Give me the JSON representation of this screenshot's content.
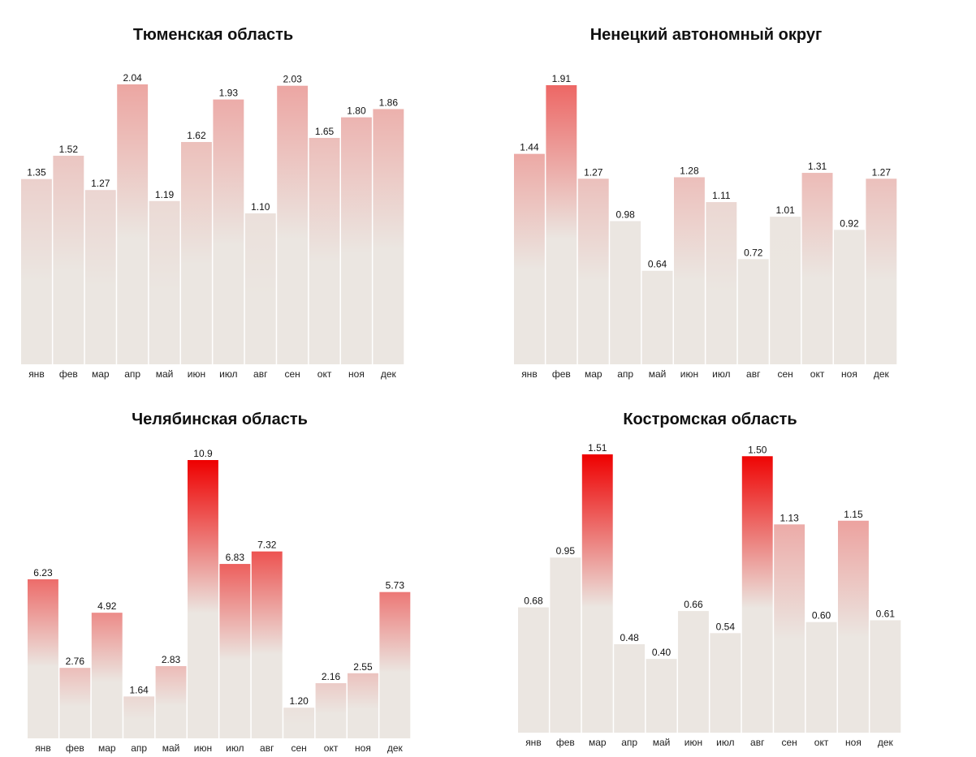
{
  "chart_data": [
    {
      "type": "bar",
      "title": "Тюменская область",
      "categories": [
        "янв",
        "фев",
        "мар",
        "апр",
        "май",
        "июн",
        "июл",
        "авг",
        "сен",
        "окт",
        "ноя",
        "дек"
      ],
      "values": [
        1.35,
        1.52,
        1.27,
        2.04,
        1.19,
        1.62,
        1.93,
        1.1,
        2.03,
        1.65,
        1.8,
        1.86
      ],
      "value_labels": [
        "1.35",
        "1.52",
        "1.27",
        "2.04",
        "1.19",
        "1.62",
        "1.93",
        "1.10",
        "2.03",
        "1.65",
        "1.80",
        "1.86"
      ],
      "ylim": [
        0,
        2.04
      ],
      "grid": false,
      "legend": "none"
    },
    {
      "type": "bar",
      "title": "Ненецкий автономный округ",
      "categories": [
        "янв",
        "фев",
        "мар",
        "апр",
        "май",
        "июн",
        "июл",
        "авг",
        "сен",
        "окт",
        "ноя",
        "дек"
      ],
      "values": [
        1.44,
        1.91,
        1.27,
        0.98,
        0.64,
        1.28,
        1.11,
        0.72,
        1.01,
        1.31,
        0.92,
        1.27
      ],
      "value_labels": [
        "1.44",
        "1.91",
        "1.27",
        "0.98",
        "0.64",
        "1.28",
        "1.11",
        "0.72",
        "1.01",
        "1.31",
        "0.92",
        "1.27"
      ],
      "ylim": [
        0,
        1.91
      ],
      "grid": false,
      "legend": "none"
    },
    {
      "type": "bar",
      "title": "Челябинская область",
      "categories": [
        "янв",
        "фев",
        "мар",
        "апр",
        "май",
        "июн",
        "июл",
        "авг",
        "сен",
        "окт",
        "ноя",
        "дек"
      ],
      "values": [
        6.23,
        2.76,
        4.92,
        1.64,
        2.83,
        10.9,
        6.83,
        7.32,
        1.2,
        2.16,
        2.55,
        5.73
      ],
      "value_labels": [
        "6.23",
        "2.76",
        "4.92",
        "1.64",
        "2.83",
        "10.9",
        "6.83",
        "7.32",
        "1.20",
        "2.16",
        "2.55",
        "5.73"
      ],
      "ylim": [
        0,
        10.9
      ],
      "grid": false,
      "legend": "none"
    },
    {
      "type": "bar",
      "title": "Костромская область",
      "categories": [
        "янв",
        "фев",
        "мар",
        "апр",
        "май",
        "июн",
        "июл",
        "авг",
        "сен",
        "окт",
        "ноя",
        "дек"
      ],
      "values": [
        0.68,
        0.95,
        1.51,
        0.48,
        0.4,
        0.66,
        0.54,
        1.5,
        1.13,
        0.6,
        1.15,
        0.61
      ],
      "value_labels": [
        "0.68",
        "0.95",
        "1.51",
        "0.48",
        "0.40",
        "0.66",
        "0.54",
        "1.50",
        "1.13",
        "0.60",
        "1.15",
        "0.61"
      ],
      "ylim": [
        0,
        1.51
      ],
      "grid": false,
      "legend": "none"
    }
  ],
  "colors": {
    "bar_base": "#ebe6e1",
    "highlight_max": "#ee0000",
    "neutral_threshold": 1.0
  }
}
